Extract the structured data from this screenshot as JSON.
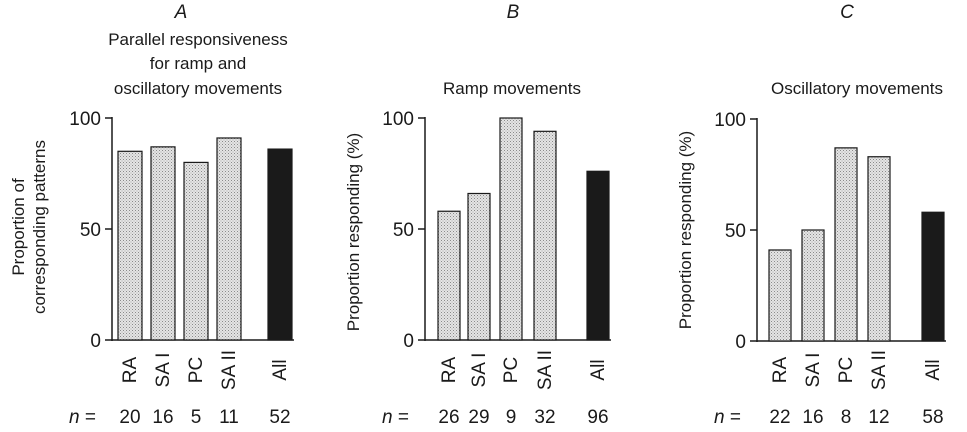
{
  "colors": {
    "bar_fill": "#e2e2e2",
    "bar_all_fill": "#1a1a1a",
    "axis": "#1a1a1a"
  },
  "n_prefix": "n =",
  "chart_data": [
    {
      "type": "bar",
      "panel": "A",
      "title_lines": [
        "Parallel responsiveness",
        "for ramp and",
        "oscillatory movements"
      ],
      "ylabel_lines": [
        "Proportion of",
        "corresponding patterns"
      ],
      "ylim": [
        0,
        100
      ],
      "yticks": [
        0,
        50,
        100
      ],
      "categories": [
        "RA",
        "SA I",
        "PC",
        "SA II",
        "All"
      ],
      "values": [
        85,
        87,
        80,
        91,
        86
      ],
      "n": [
        "20",
        "16",
        "5",
        "11",
        "52"
      ],
      "grid": false
    },
    {
      "type": "bar",
      "panel": "B",
      "title_lines": [
        "Ramp movements"
      ],
      "ylabel_lines": [
        "Proportion responding (%)"
      ],
      "ylim": [
        0,
        100
      ],
      "yticks": [
        0,
        50,
        100
      ],
      "categories": [
        "RA",
        "SA I",
        "PC",
        "SA II",
        "All"
      ],
      "values": [
        58,
        66,
        100,
        94,
        76
      ],
      "n": [
        "26",
        "29",
        "9",
        "32",
        "96"
      ],
      "grid": false
    },
    {
      "type": "bar",
      "panel": "C",
      "title_lines": [
        "Oscillatory movements"
      ],
      "ylabel_lines": [
        "Proportion responding (%)"
      ],
      "ylim": [
        0,
        100
      ],
      "yticks": [
        0,
        50,
        100
      ],
      "categories": [
        "RA",
        "SA I",
        "PC",
        "SA II",
        "All"
      ],
      "values": [
        41,
        50,
        87,
        83,
        58
      ],
      "n": [
        "22",
        "16",
        "8",
        "12",
        "58"
      ],
      "grid": false
    }
  ]
}
